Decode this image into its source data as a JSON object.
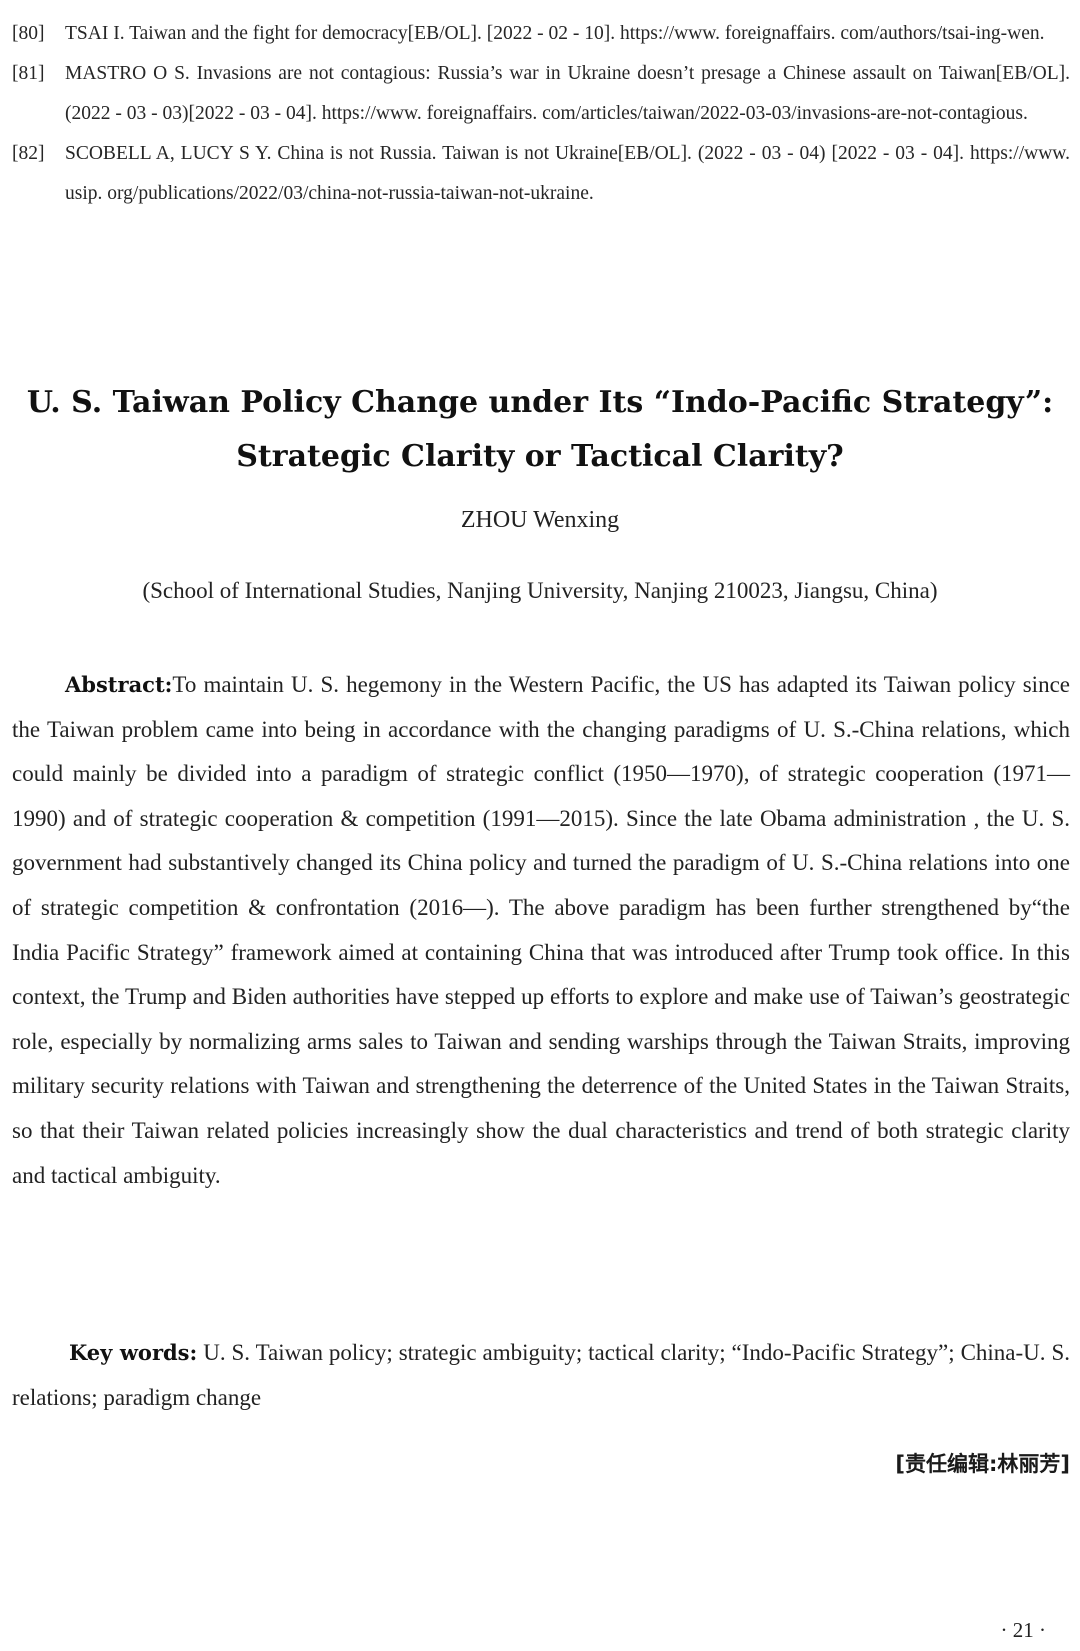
{
  "references": [
    {
      "number": "[80]",
      "text": "TSAI I. Taiwan and the fight for democracy[EB/OL]. [2022 - 02 - 10]. https://www. foreignaffairs. com/authors/tsai-ing-wen."
    },
    {
      "number": "[81]",
      "text": "MASTRO O S. Invasions are not contagious: Russia’s war in Ukraine doesn’t presage a Chinese assault on Taiwan[EB/OL]. (2022 - 03 - 03)[2022 - 03 - 04]. https://www. foreignaffairs. com/articles/taiwan/2022-03-03/invasions-are-not-contagious."
    },
    {
      "number": "[82]",
      "text": "SCOBELL A, LUCY S Y. China is not Russia. Taiwan is not Ukraine[EB/OL]. (2022 - 03 - 04) [2022 - 03 - 04]. https://www. usip. org/publications/2022/03/china-not-russia-taiwan-not-ukraine."
    }
  ],
  "article": {
    "title_line1": "U. S. Taiwan Policy Change under Its “Indo-Pacific Strategy”:",
    "title_line2": "Strategic Clarity or Tactical Clarity?",
    "author": "ZHOU Wenxing",
    "affiliation": "(School of International Studies, Nanjing University, Nanjing 210023, Jiangsu, China)"
  },
  "abstract": {
    "label": "Abstract:",
    "text": "To maintain U. S. hegemony in the Western Pacific, the US has adapted its Taiwan policy since the Taiwan problem came into being in accordance with the changing paradigms of U. S.-China relations, which could mainly be divided into a paradigm of strategic conflict (1950—1970), of strategic cooperation (1971—1990) and of strategic cooperation & competition (1991—2015). Since the late Obama administration , the U. S. government had substantively changed its China policy and turned the paradigm of U. S.-China relations into one of strategic competition & confrontation (2016—). The above paradigm has been further strengthened by“the India Pacific Strategy” framework aimed at containing China that was introduced after Trump took office. In this context, the Trump and Biden authorities have stepped up efforts to explore and make use of Taiwan’s geostrategic role, especially by normalizing arms sales to Taiwan and sending warships through the Taiwan Straits, improving military security relations with Taiwan and strengthening the deterrence of the United States in the Taiwan Straits, so that their Taiwan related policies increasingly show the dual characteristics and trend of both strategic clarity and tactical ambiguity."
  },
  "keywords": {
    "label": "Key words:",
    "text": "U. S. Taiwan policy; strategic ambiguity; tactical clarity; “Indo-Pacific Strategy”; China-U. S. relations; paradigm change"
  },
  "editor_note": "[责任编辑:林丽芳]",
  "page_number": "· 21 ·"
}
